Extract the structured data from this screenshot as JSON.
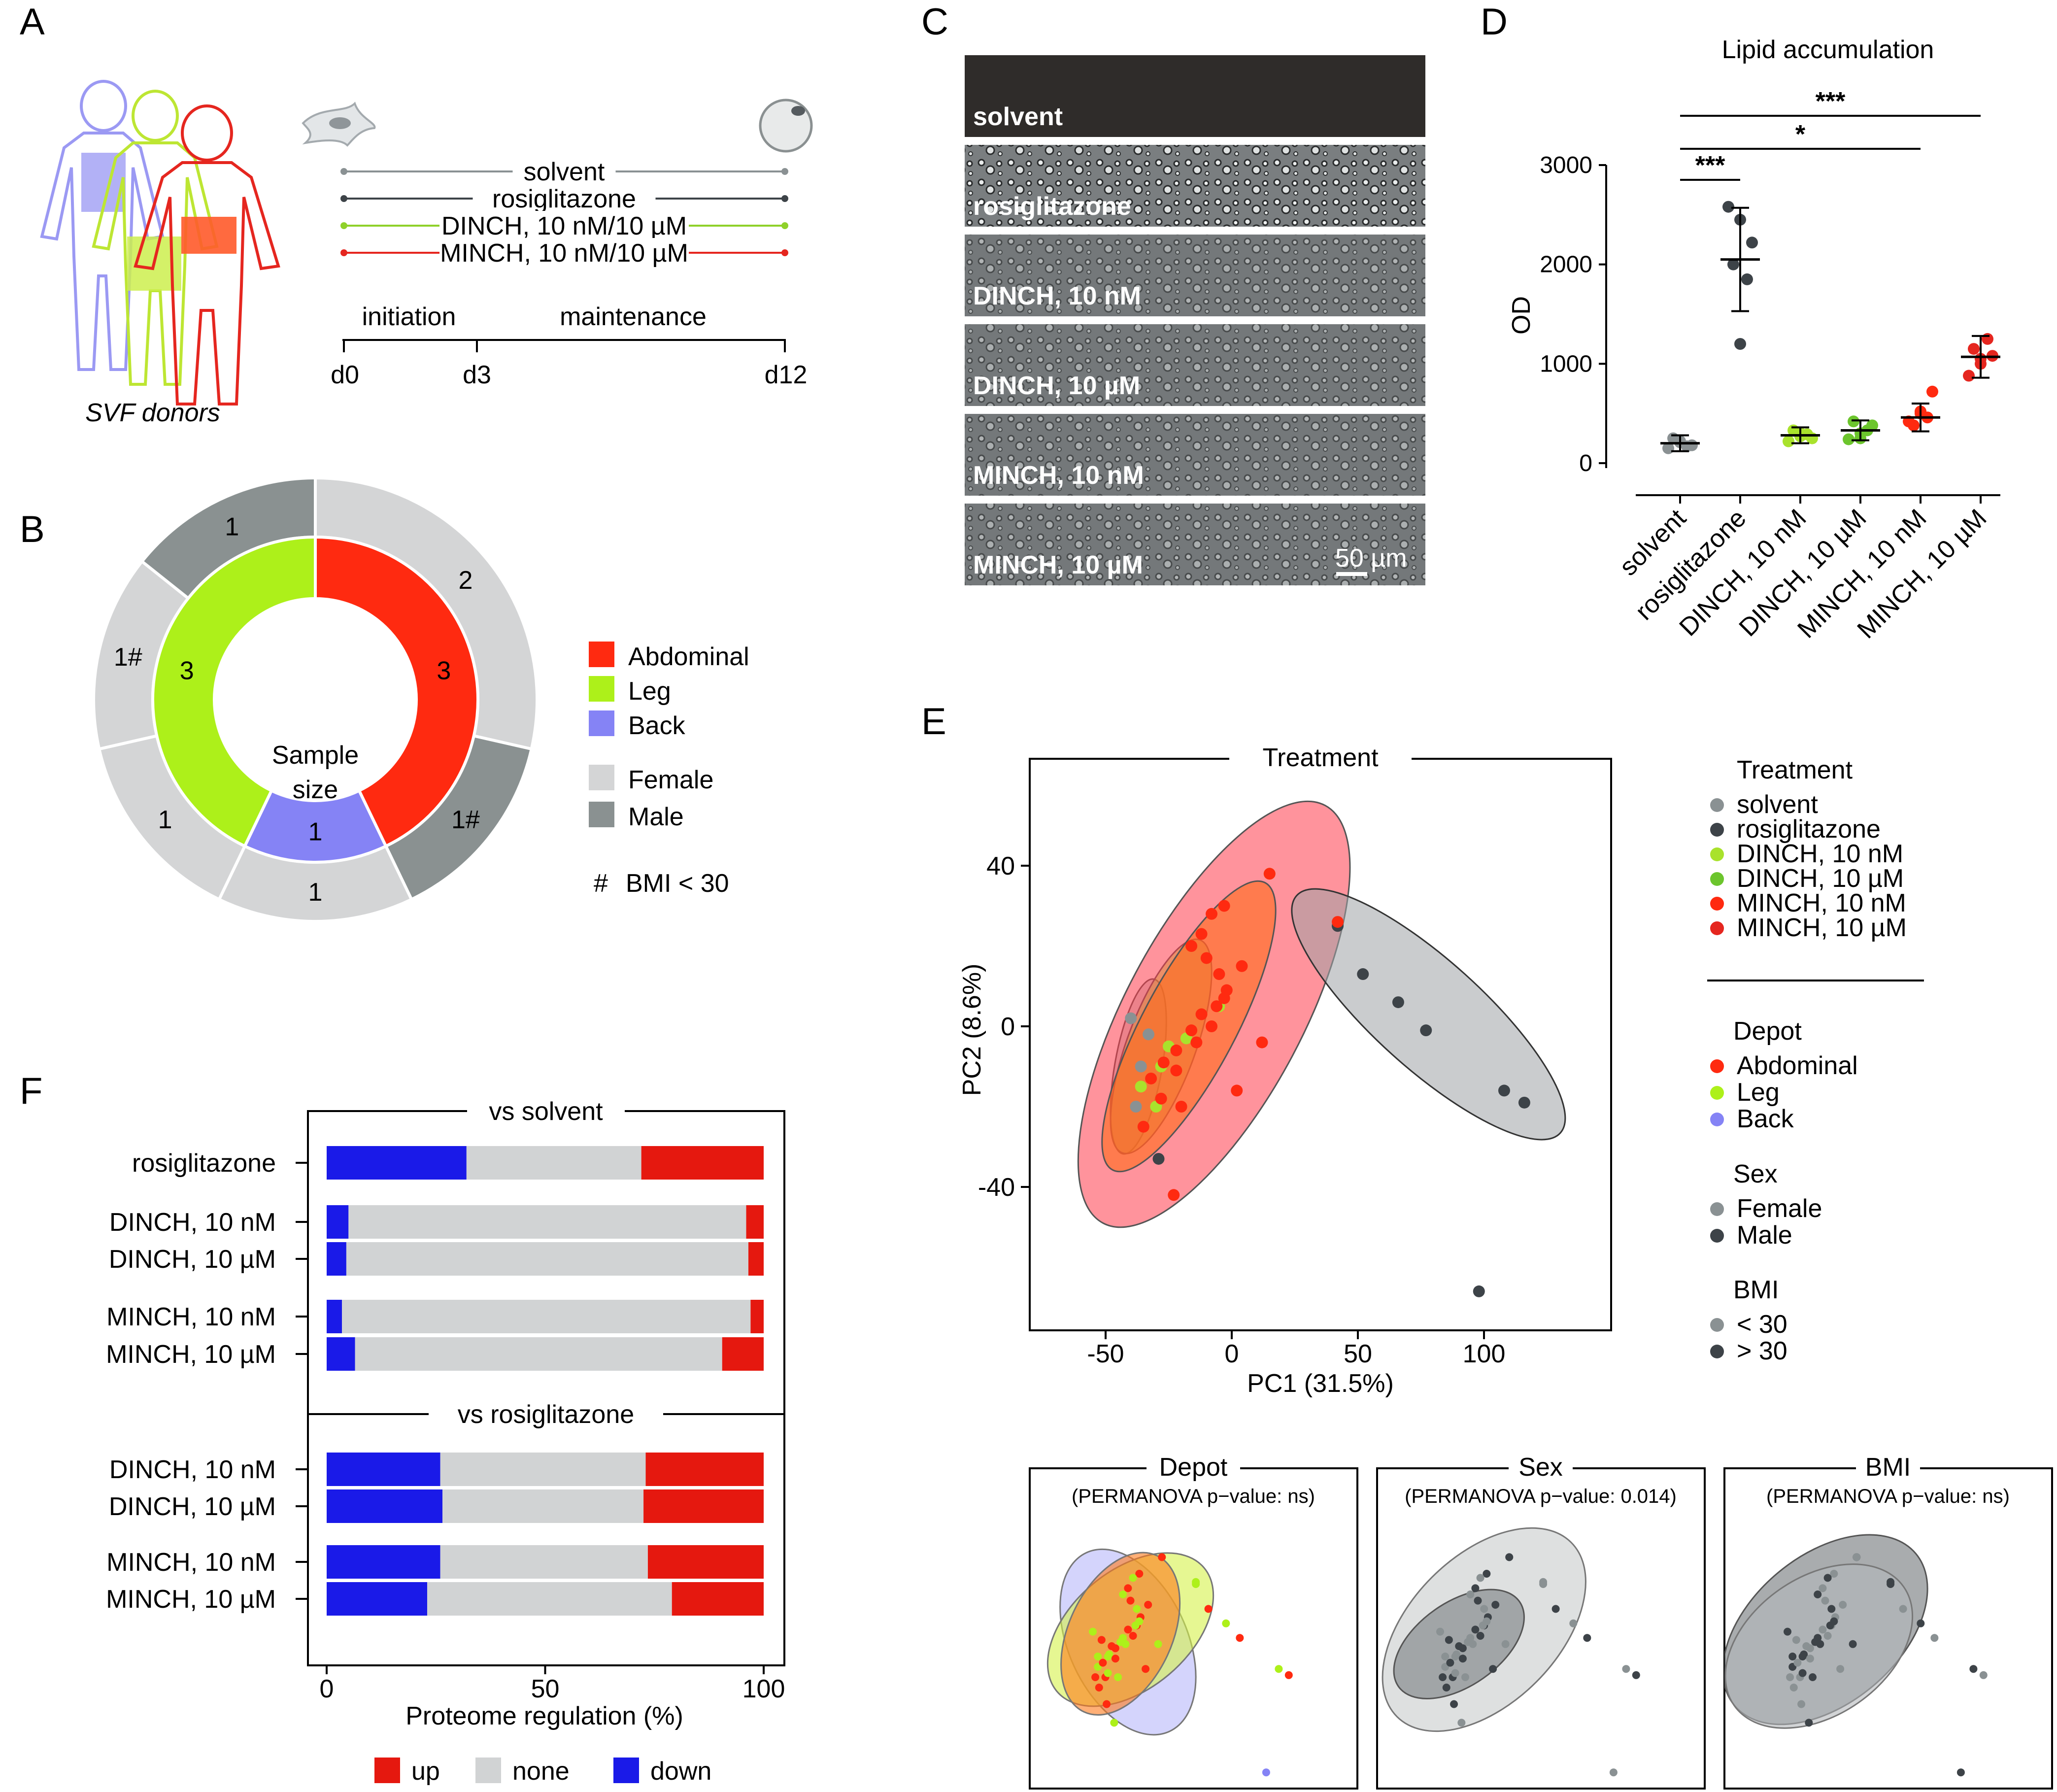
{
  "panels": {
    "a": "A",
    "b": "B",
    "c": "C",
    "d": "D",
    "e": "E",
    "f": "F"
  },
  "panel_a": {
    "treatments": [
      {
        "label": "solvent",
        "color": "#8a9193"
      },
      {
        "label": "rosiglitazone",
        "color": "#3d4348"
      },
      {
        "label": "DINCH, 10 nM/10 µM",
        "color": "#8fd12a"
      },
      {
        "label": "MINCH, 10 nM/10 µM",
        "color": "#e5261f"
      }
    ],
    "phases": [
      "initiation",
      "maintenance"
    ],
    "days": [
      "d0",
      "d3",
      "d12"
    ],
    "donors_label": "SVF donors"
  },
  "panel_b": {
    "center": [
      "Sample",
      "size"
    ],
    "inner_ring": [
      {
        "name": "Abdominal",
        "value": 3,
        "label": "3",
        "color": "#ff2a10"
      },
      {
        "name": "Back",
        "value": 1,
        "label": "1",
        "color": "#8583f5"
      },
      {
        "name": "Leg",
        "value": 3,
        "label": "3",
        "color": "#adf01a"
      }
    ],
    "outer_ring": [
      {
        "value": 2,
        "label": "2",
        "color": "#d4d5d6"
      },
      {
        "value": 1,
        "label": "1#",
        "color": "#8a9191"
      },
      {
        "value": 1,
        "label": "1",
        "color": "#d4d5d6"
      },
      {
        "value": 1,
        "label": "1",
        "color": "#d4d5d6"
      },
      {
        "value": 1,
        "label": "1#",
        "color": "#d4d5d6"
      },
      {
        "value": 1,
        "label": "1",
        "color": "#8a9191"
      }
    ],
    "legend": [
      {
        "label": "Abdominal",
        "color": "#ff2a10"
      },
      {
        "label": "Leg",
        "color": "#adf01a"
      },
      {
        "label": "Back",
        "color": "#8583f5"
      },
      {
        "label": "Female",
        "color": "#d4d5d6"
      },
      {
        "label": "Male",
        "color": "#8a9191"
      }
    ],
    "footnote": {
      "symbol": "#",
      "text": "BMI < 30"
    }
  },
  "panel_c": {
    "labels": [
      "solvent",
      "rosiglitazone",
      "DINCH, 10 nM",
      "DINCH, 10 µM",
      "MINCH, 10 nM",
      "MINCH, 10 µM"
    ],
    "scale": "50 µm"
  },
  "chart_data": [
    {
      "type": "scatter",
      "title": "Lipid accumulation",
      "ylabel": "OD",
      "ylim": [
        0,
        3000
      ],
      "yticks": [
        "0",
        "1000",
        "2000",
        "3000"
      ],
      "categories": [
        "solvent",
        "rosiglitazone",
        "DINCH, 10 nM",
        "DINCH, 10 µM",
        "MINCH, 10 nM",
        "MINCH, 10 µM"
      ],
      "colors": [
        "#8a9193",
        "#3d4348",
        "#a9e22c",
        "#6cc52d",
        "#ff2a10",
        "#e5261f"
      ],
      "means": [
        200,
        2050,
        280,
        330,
        460,
        1070
      ],
      "sd_low": [
        120,
        1530,
        200,
        230,
        320,
        860
      ],
      "sd_high": [
        280,
        2570,
        360,
        430,
        600,
        1280
      ],
      "points": [
        [
          150,
          220,
          180,
          250,
          170,
          210
        ],
        [
          2580,
          2450,
          2220,
          2000,
          1850,
          1200
        ],
        [
          220,
          300,
          250,
          330,
          290,
          270
        ],
        [
          240,
          300,
          380,
          420,
          330,
          250
        ],
        [
          420,
          520,
          720,
          380,
          460,
          500
        ],
        [
          880,
          1000,
          1080,
          1150,
          1250,
          1050
        ]
      ],
      "significance": [
        {
          "from": 0,
          "to": 1,
          "label": "***"
        },
        {
          "from": 0,
          "to": 4,
          "label": "*"
        },
        {
          "from": 0,
          "to": 5,
          "label": "***"
        }
      ]
    },
    {
      "type": "scatter",
      "title": "Treatment",
      "xlabel": "PC1 (31.5%)",
      "ylabel": "PC2 (8.6%)",
      "xlim": [
        -80,
        150
      ],
      "ylim": [
        -77,
        62
      ],
      "xticks": [
        "-50",
        "0",
        "50",
        "100"
      ],
      "yticks": [
        "-40",
        "0",
        "40"
      ],
      "series": [
        {
          "name": "rosiglitazone",
          "color": "#3d4348",
          "points": [
            [
              42,
              25
            ],
            [
              52,
              13
            ],
            [
              66,
              6
            ],
            [
              77,
              -1
            ],
            [
              108,
              -16
            ],
            [
              116,
              -19
            ],
            [
              98,
              -66
            ],
            [
              -29,
              -33
            ]
          ]
        },
        {
          "name": "solvent",
          "color": "#8a9193",
          "points": [
            [
              -40,
              2
            ],
            [
              -38,
              -20
            ],
            [
              -36,
              -10
            ],
            [
              -33,
              -2
            ]
          ]
        },
        {
          "name": "DINCH",
          "color": "#a9e22c",
          "points": [
            [
              -36,
              -15
            ],
            [
              -30,
              -20
            ],
            [
              -28,
              -10
            ],
            [
              -25,
              -5
            ],
            [
              -18,
              -3
            ],
            [
              -5,
              5
            ],
            [
              15,
              38
            ]
          ]
        },
        {
          "name": "MINCH",
          "color": "#ff2a10",
          "points": [
            [
              -23,
              -42
            ],
            [
              2,
              -16
            ],
            [
              12,
              -4
            ],
            [
              15,
              38
            ],
            [
              42,
              26
            ],
            [
              -3,
              30
            ],
            [
              -8,
              28
            ],
            [
              -12,
              23
            ],
            [
              -16,
              20
            ],
            [
              -10,
              17
            ],
            [
              -5,
              13
            ],
            [
              -2,
              9
            ],
            [
              -6,
              5
            ],
            [
              -12,
              3
            ],
            [
              -16,
              -1
            ],
            [
              -22,
              -6
            ],
            [
              -27,
              -9
            ],
            [
              -32,
              -13
            ],
            [
              -28,
              -18
            ],
            [
              -22,
              -11
            ],
            [
              -14,
              -4
            ],
            [
              -8,
              0
            ],
            [
              -3,
              7
            ],
            [
              4,
              15
            ],
            [
              -20,
              -20
            ],
            [
              -35,
              -25
            ]
          ]
        }
      ],
      "legend_title": "Treatment",
      "legend": [
        {
          "label": "solvent",
          "color": "#8a9193"
        },
        {
          "label": "rosiglitazone",
          "color": "#3d4348"
        },
        {
          "label": "DINCH, 10 nM",
          "color": "#a9e22c"
        },
        {
          "label": "DINCH, 10 µM",
          "color": "#6cc52d"
        },
        {
          "label": "MINCH, 10 nM",
          "color": "#ff2a10"
        },
        {
          "label": "MINCH, 10 µM",
          "color": "#e5261f"
        }
      ],
      "legend_depot_title": "Depot",
      "legend_depot": [
        {
          "label": "Abdominal",
          "color": "#ff2a10"
        },
        {
          "label": "Leg",
          "color": "#adf01a"
        },
        {
          "label": "Back",
          "color": "#8583f5"
        }
      ],
      "legend_sex_title": "Sex",
      "legend_sex": [
        {
          "label": "Female",
          "color": "#8a9193"
        },
        {
          "label": "Male",
          "color": "#3d4348"
        }
      ],
      "legend_bmi_title": "BMI",
      "legend_bmi": [
        {
          "label": "< 30",
          "color": "#8a9193"
        },
        {
          "label": "> 30",
          "color": "#3d4348"
        }
      ],
      "subpanels": [
        {
          "title": "Depot",
          "stat": "(PERMANOVA p−value: ns)"
        },
        {
          "title": "Sex",
          "stat": "(PERMANOVA p−value: 0.014)"
        },
        {
          "title": "BMI",
          "stat": "(PERMANOVA p−value: ns)"
        }
      ]
    },
    {
      "type": "bar",
      "xlabel": "Proteome regulation (%)",
      "xlim": [
        0,
        100
      ],
      "xticks": [
        "0",
        "50",
        "100"
      ],
      "groups": [
        {
          "title": "vs solvent",
          "rows": [
            {
              "label": "rosiglitazone",
              "down": 32,
              "none": 40,
              "up": 28
            },
            {
              "label": "DINCH, 10 nM",
              "down": 5,
              "none": 91,
              "up": 4
            },
            {
              "label": "DINCH, 10 µM",
              "down": 4.5,
              "none": 92,
              "up": 3.5
            },
            {
              "label": "MINCH, 10 nM",
              "down": 3.5,
              "none": 93.5,
              "up": 3
            },
            {
              "label": "MINCH, 10 µM",
              "down": 6.5,
              "none": 84,
              "up": 9.5
            }
          ]
        },
        {
          "title": "vs rosiglitazone",
          "rows": [
            {
              "label": "DINCH, 10 nM",
              "down": 26,
              "none": 47,
              "up": 27
            },
            {
              "label": "DINCH, 10 µM",
              "down": 26.5,
              "none": 46,
              "up": 27.5
            },
            {
              "label": "MINCH, 10 nM",
              "down": 26,
              "none": 47.5,
              "up": 26.5
            },
            {
              "label": "MINCH, 10 µM",
              "down": 23,
              "none": 56,
              "up": 21
            }
          ]
        }
      ],
      "legend": [
        {
          "label": "up",
          "color": "#e5180f"
        },
        {
          "label": "none",
          "color": "#d1d3d4"
        },
        {
          "label": "down",
          "color": "#1a1ae8"
        }
      ]
    }
  ]
}
